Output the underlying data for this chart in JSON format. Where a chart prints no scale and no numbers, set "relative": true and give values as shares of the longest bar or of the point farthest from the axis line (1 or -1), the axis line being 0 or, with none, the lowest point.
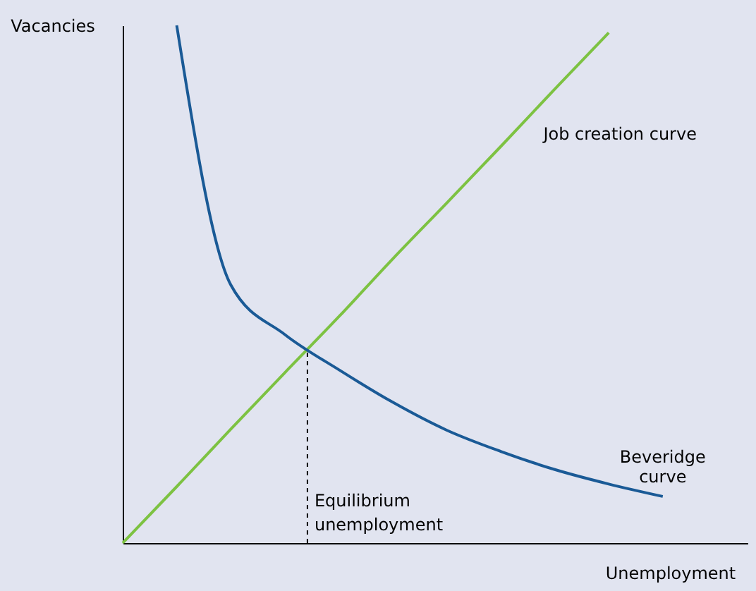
{
  "chart_data": {
    "type": "line",
    "relative": true,
    "xlabel": "Unemployment",
    "ylabel": "Vacancies",
    "tick_labels": false,
    "grid": false,
    "categories": [
      null,
      null,
      null,
      null,
      null,
      null,
      null,
      null,
      null,
      null,
      null
    ],
    "series": [
      {
        "name": "Job creation curve",
        "color": "#7dc242",
        "values": [
          0,
          0.109,
          0.22,
          0.329,
          0.437,
          0.549,
          0.657,
          0.766,
          0.877,
          0.986,
          null
        ]
      },
      {
        "name": "Beveridge curve",
        "color": "#1a5a96",
        "values": [
          null,
          1,
          0.499,
          0.403,
          0.335,
          0.272,
          0.218,
          0.177,
          0.142,
          0.114,
          0.09
        ]
      }
    ],
    "annotations": [
      "Equilibrium unemployment"
    ]
  }
}
